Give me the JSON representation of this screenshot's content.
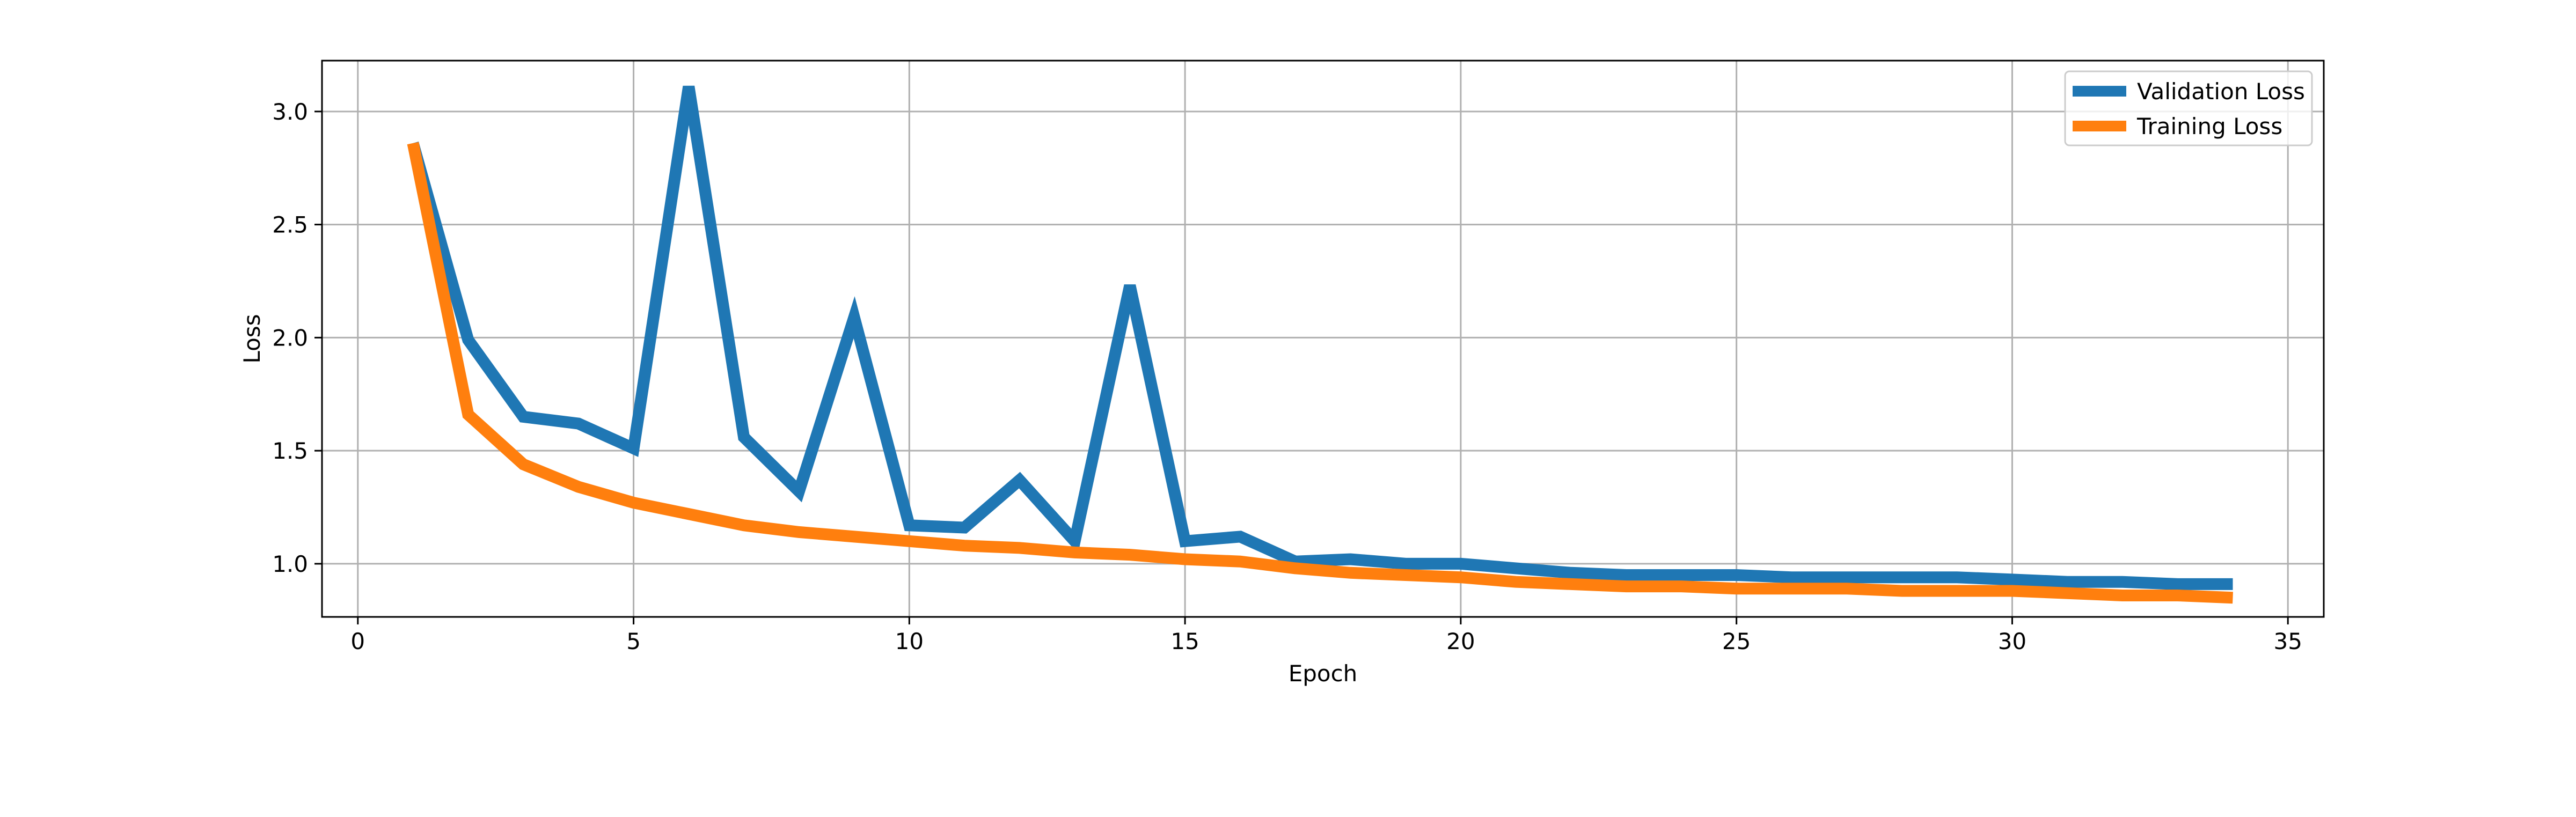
{
  "chart_data": {
    "type": "line",
    "xlabel": "Epoch",
    "ylabel": "Loss",
    "xlim": [
      -0.65,
      35.65
    ],
    "ylim": [
      0.765,
      3.225
    ],
    "x_ticks": [
      0,
      5,
      10,
      15,
      20,
      25,
      30,
      35
    ],
    "y_ticks": [
      1.0,
      1.5,
      2.0,
      2.5,
      3.0
    ],
    "x_tick_labels": [
      "0",
      "5",
      "10",
      "15",
      "20",
      "25",
      "30",
      "35"
    ],
    "y_tick_labels": [
      "1.0",
      "1.5",
      "2.0",
      "2.5",
      "3.0"
    ],
    "grid": true,
    "legend_position": "top-right",
    "x": [
      1,
      2,
      3,
      4,
      5,
      6,
      7,
      8,
      9,
      10,
      11,
      12,
      13,
      14,
      15,
      16,
      17,
      18,
      19,
      20,
      21,
      22,
      23,
      24,
      25,
      26,
      27,
      28,
      29,
      30,
      31,
      32,
      33,
      34
    ],
    "series": [
      {
        "name": "Validation Loss",
        "color": "#1f77b4",
        "values": [
          2.86,
          1.99,
          1.65,
          1.62,
          1.51,
          3.11,
          1.56,
          1.32,
          2.09,
          1.17,
          1.16,
          1.37,
          1.1,
          2.23,
          1.1,
          1.12,
          1.01,
          1.02,
          1.0,
          1.0,
          0.98,
          0.96,
          0.95,
          0.95,
          0.95,
          0.94,
          0.94,
          0.94,
          0.94,
          0.93,
          0.92,
          0.92,
          0.91,
          0.91
        ]
      },
      {
        "name": "Training Loss",
        "color": "#ff7f0e",
        "values": [
          2.86,
          1.66,
          1.44,
          1.34,
          1.27,
          1.22,
          1.17,
          1.14,
          1.12,
          1.1,
          1.08,
          1.07,
          1.05,
          1.04,
          1.02,
          1.01,
          0.98,
          0.96,
          0.95,
          0.94,
          0.92,
          0.91,
          0.9,
          0.9,
          0.89,
          0.89,
          0.89,
          0.88,
          0.88,
          0.88,
          0.87,
          0.86,
          0.86,
          0.85
        ]
      }
    ]
  }
}
